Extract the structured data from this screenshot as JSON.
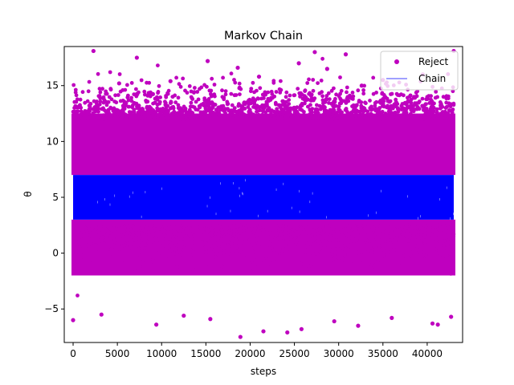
{
  "chart_data": {
    "type": "scatter",
    "title": "Markov Chain",
    "xlabel": "steps",
    "ylabel": "θ",
    "xlim": [
      -1000,
      44000
    ],
    "ylim": [
      -8,
      18.5
    ],
    "x_ticks": [
      0,
      5000,
      10000,
      15000,
      20000,
      25000,
      30000,
      35000,
      40000
    ],
    "y_ticks": [
      -5,
      0,
      5,
      10,
      15
    ],
    "grid": false,
    "legend_position": "top-right",
    "series": [
      {
        "name": "Reject",
        "kind": "scatter",
        "color": "#bf00bf",
        "n_steps": 43000,
        "bands": [
          {
            "x_range": [
              0,
              43000
            ],
            "y_range": [
              7,
              12.5
            ]
          },
          {
            "x_range": [
              0,
              43000
            ],
            "y_range": [
              -2,
              3
            ]
          }
        ],
        "outliers": [
          {
            "x": 2300,
            "y": 18.1
          },
          {
            "x": 7200,
            "y": 17.5
          },
          {
            "x": 15200,
            "y": 17.2
          },
          {
            "x": 18600,
            "y": 16.6
          },
          {
            "x": 25500,
            "y": 17.0
          },
          {
            "x": 27300,
            "y": 18.0
          },
          {
            "x": 28700,
            "y": 16.5
          },
          {
            "x": 30800,
            "y": 17.8
          },
          {
            "x": 43000,
            "y": 18.1
          },
          {
            "x": 39500,
            "y": 16.0
          },
          {
            "x": 11000,
            "y": 15.4
          },
          {
            "x": 21000,
            "y": 15.8
          },
          {
            "x": 35000,
            "y": 15.5
          },
          {
            "x": 5200,
            "y": 15.2
          },
          {
            "x": 32600,
            "y": 15.0
          },
          {
            "x": 0,
            "y": -6.0
          },
          {
            "x": 9400,
            "y": -6.4
          },
          {
            "x": 18900,
            "y": -7.5
          },
          {
            "x": 21500,
            "y": -7.0
          },
          {
            "x": 24200,
            "y": -7.1
          },
          {
            "x": 25800,
            "y": -6.8
          },
          {
            "x": 32200,
            "y": -6.5
          },
          {
            "x": 40600,
            "y": -6.3
          },
          {
            "x": 41200,
            "y": -6.4
          },
          {
            "x": 42700,
            "y": -5.7
          },
          {
            "x": 15500,
            "y": -5.9
          },
          {
            "x": 29500,
            "y": -6.1
          },
          {
            "x": 3200,
            "y": -5.5
          },
          {
            "x": 12500,
            "y": -5.6
          },
          {
            "x": 36000,
            "y": -5.8
          }
        ]
      },
      {
        "name": "Chain",
        "kind": "line",
        "color": "#0000ff",
        "n_steps": 43000,
        "y_range": [
          3,
          7
        ]
      }
    ]
  }
}
